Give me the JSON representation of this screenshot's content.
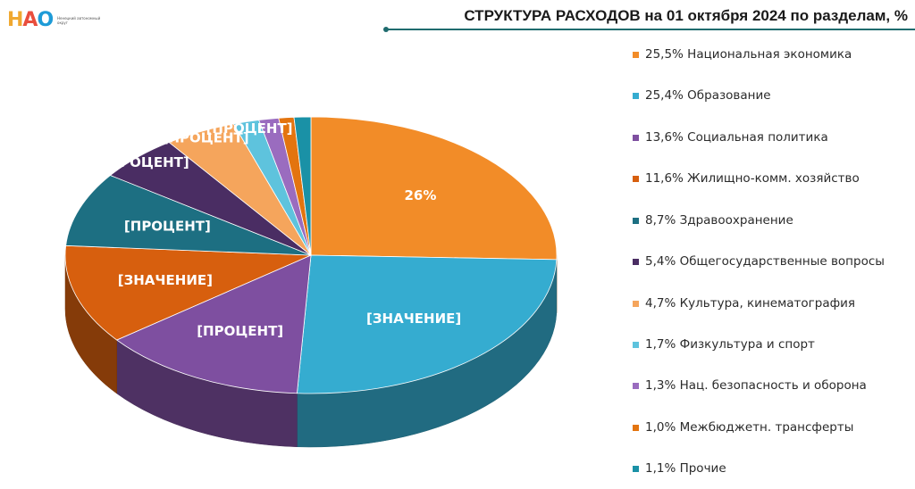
{
  "logo": {
    "text": "НАО",
    "subtitle": "Ненецкий автономный округ"
  },
  "header": {
    "title": "СТРУКТУРА РАСХОДОВ на 01 октября 2024 по разделам, %"
  },
  "colors": {
    "accent_line": "#1f6b6e"
  },
  "chart_data": {
    "type": "pie",
    "title": "СТРУКТУРА РАСХОДОВ на 01 октября 2024 по разделам, %",
    "legend_position": "right",
    "categories": [
      "Национальная экономика",
      "Образование",
      "Социальная политика",
      "Жилищно-комм. хозяйство",
      "Здравоохранение",
      "Общегосударственные вопросы",
      "Культура, кинематография",
      "Физкультура и спорт",
      "Нац. безопасность и оборона",
      "Межбюджетн. трансферты",
      "Прочие"
    ],
    "values": [
      25.5,
      25.4,
      13.6,
      11.6,
      8.7,
      5.4,
      4.7,
      1.7,
      1.3,
      1.0,
      1.1
    ],
    "legend_labels": [
      "25,5% Национальная экономика",
      "25,4% Образование",
      "13,6% Социальная политика",
      "11,6% Жилищно-комм. хозяйство",
      "8,7% Здравоохранение",
      "5,4% Общегосударственные вопросы",
      "4,7% Культура, кинематография",
      "1,7% Физкультура и спорт",
      "1,3% Нац. безопасность и оборона",
      "1,0% Межбюджетн. трансферты",
      "1,1% Прочие"
    ],
    "data_labels": [
      "26%",
      "[ЗНАЧЕНИЕ]",
      "[ПРОЦЕНТ]",
      "[ЗНАЧЕНИЕ]",
      "[ПРОЦЕНТ]",
      "[ПРОЦЕНТ]",
      "[ПРОЦЕНТ]",
      "[ПРОЦЕНТ]",
      "",
      "",
      ""
    ],
    "colors": [
      "#f28c28",
      "#35acd0",
      "#7e4fa0",
      "#d75f0e",
      "#1d6f82",
      "#4a2d63",
      "#f5a55c",
      "#5ec3dd",
      "#9a6cbf",
      "#e3740f",
      "#1a91a6"
    ]
  }
}
